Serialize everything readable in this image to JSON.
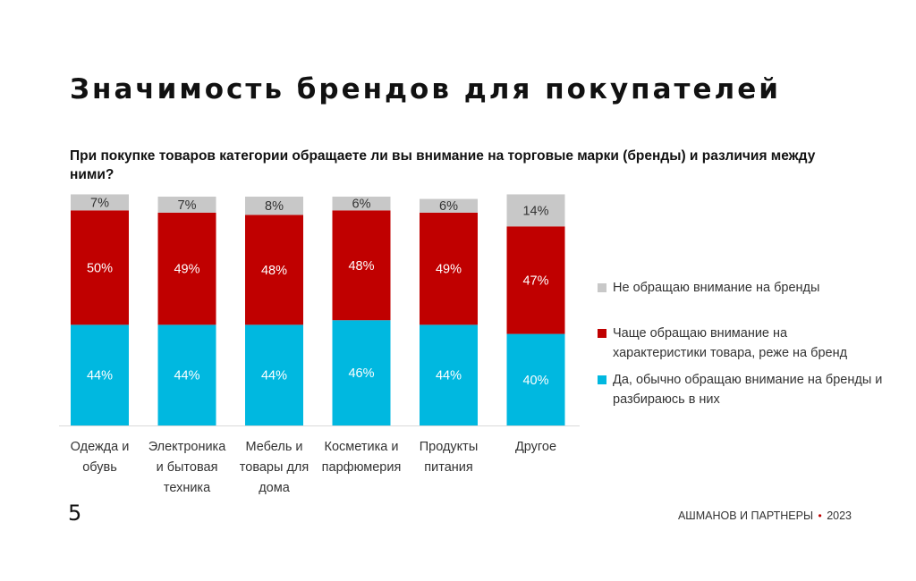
{
  "title": "Значимость брендов для покупателей",
  "question": "При покупке товаров категории обращаете ли вы внимание на торговые марки (бренды) и различия между ними?",
  "page_number": "5",
  "footer": {
    "brand": "АШМАНОВ И ПАРТНЕРЫ",
    "year": "2023"
  },
  "legend": [
    {
      "label": "Не обращаю внимание на бренды",
      "color": "#c8c8c8"
    },
    {
      "label": "Чаще обращаю внимание на характеристики товара, реже на бренд",
      "color": "#c00000"
    },
    {
      "label": "Да, обычно обращаю внимание на бренды и разбираюсь в них",
      "color": "#00b8e0"
    }
  ],
  "chart_data": {
    "type": "bar",
    "stacked": true,
    "categories": [
      "Одежда и обувь",
      "Электроника и бытовая техника",
      "Мебель и товары для дома",
      "Косметика и парфюмерия",
      "Продукты питания",
      "Другое"
    ],
    "series": [
      {
        "name": "Да, обычно обращаю внимание на бренды и разбираюсь в них",
        "values": [
          44,
          44,
          44,
          46,
          44,
          40
        ],
        "color": "#00b8e0"
      },
      {
        "name": "Чаще обращаю внимание на характеристики товара, реже на бренд",
        "values": [
          50,
          49,
          48,
          48,
          49,
          47
        ],
        "color": "#c00000"
      },
      {
        "name": "Не обращаю внимание на бренды",
        "values": [
          7,
          7,
          8,
          6,
          6,
          14
        ],
        "color": "#c8c8c8"
      }
    ],
    "value_suffix": "%",
    "xlabel": "",
    "ylabel": "",
    "grid": false,
    "legend_position": "right"
  }
}
